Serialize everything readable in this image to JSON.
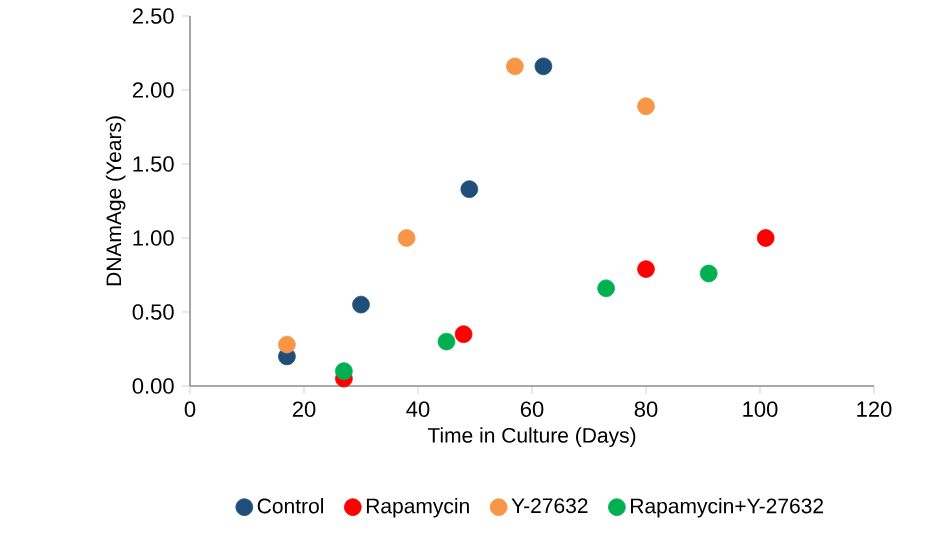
{
  "chart_data": {
    "type": "scatter",
    "xlabel": "Time in Culture (Days)",
    "ylabel": "DNAmAge (Years)",
    "xlim": [
      0,
      120
    ],
    "xticks": [
      0,
      20,
      40,
      60,
      80,
      100,
      120
    ],
    "ylim": [
      0,
      2.5
    ],
    "yticks": [
      {
        "value": 0,
        "label": "0.00"
      },
      {
        "value": 0.5,
        "label": "0.50"
      },
      {
        "value": 1,
        "label": "1.00"
      },
      {
        "value": 1.5,
        "label": "1.50"
      },
      {
        "value": 2,
        "label": "2.00"
      },
      {
        "value": 2.5,
        "label": "2.50"
      }
    ],
    "grid": false,
    "legend": "bottom",
    "marker": "circle",
    "series": [
      {
        "name": "Control",
        "color": "#1f4e79",
        "x": [
          17,
          30,
          49,
          62
        ],
        "values": [
          0.2,
          0.55,
          1.33,
          2.16
        ]
      },
      {
        "name": "Rapamycin",
        "color": "#ff0000",
        "x": [
          27,
          48,
          80,
          101
        ],
        "values": [
          0.05,
          0.35,
          0.79,
          1.0
        ]
      },
      {
        "name": "Y-27632",
        "color": "#f79646",
        "x": [
          17,
          38,
          57,
          80
        ],
        "values": [
          0.28,
          1.0,
          2.16,
          1.89
        ]
      },
      {
        "name": "Rapamycin+Y-27632",
        "color": "#00b050",
        "x": [
          27,
          45,
          73,
          91
        ],
        "values": [
          0.1,
          0.3,
          0.66,
          0.76
        ]
      }
    ]
  }
}
